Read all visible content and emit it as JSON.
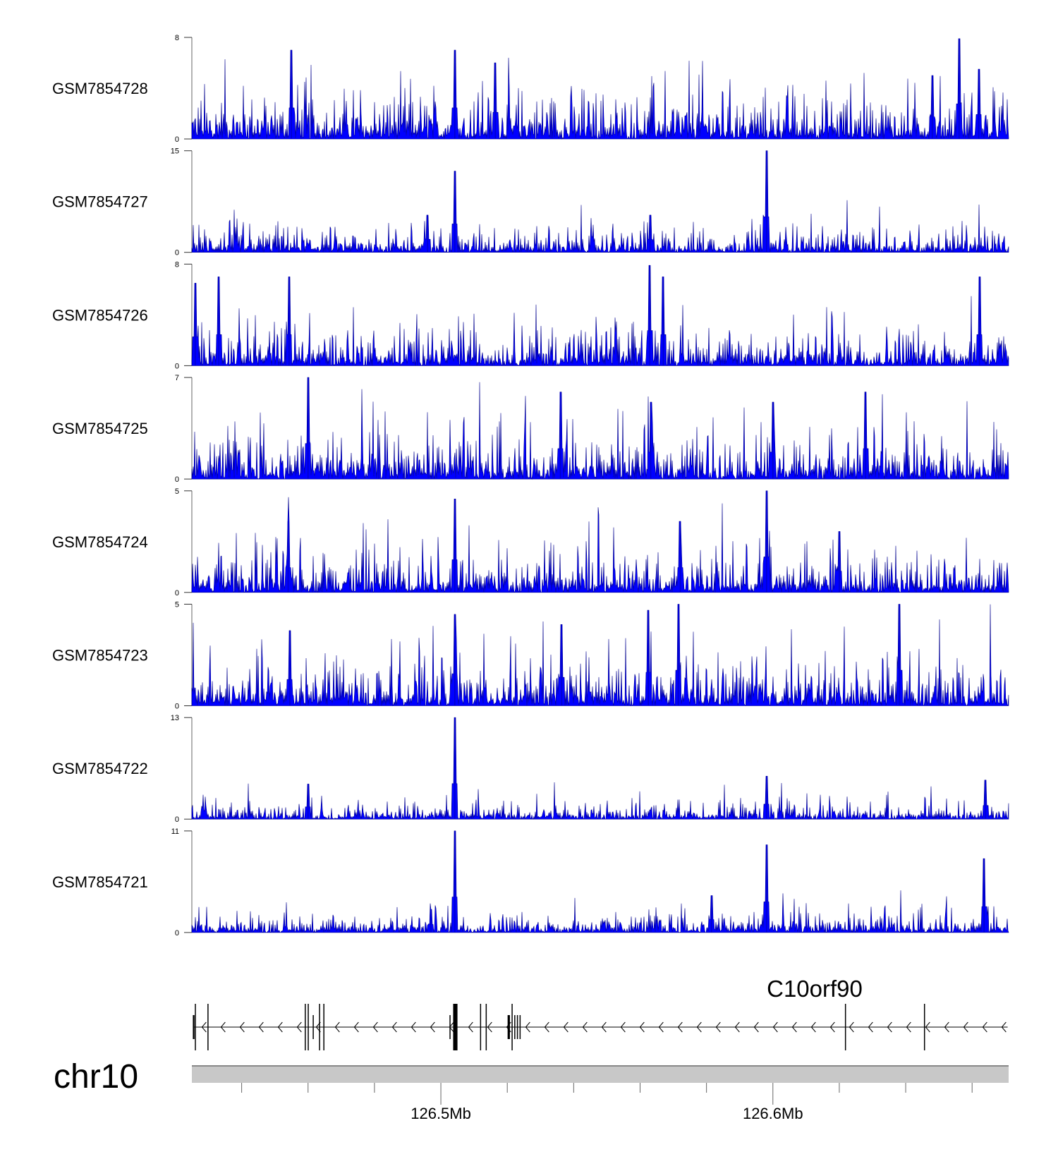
{
  "chart_data": {
    "type": "area",
    "title": "",
    "chromosome": "chr10",
    "xlim": [
      126.425,
      126.671
    ],
    "xunit": "Mb",
    "fill_color": "#0000ff",
    "line_color": "#00008b",
    "tracks": [
      {
        "name": "GSM7854728",
        "ymax": 8,
        "yticks": [
          "0",
          "8"
        ],
        "noise": 2.2,
        "peaks": [
          [
            126.455,
            7.0
          ],
          [
            126.5042,
            7.0
          ],
          [
            126.5164,
            6.0
          ],
          [
            126.6561,
            7.9
          ],
          [
            126.648,
            5.0
          ],
          [
            126.662,
            5.5
          ]
        ]
      },
      {
        "name": "GSM7854727",
        "ymax": 15,
        "yticks": [
          "0",
          "15"
        ],
        "noise": 2.2,
        "peaks": [
          [
            126.5042,
            12.0
          ],
          [
            126.5981,
            15.0
          ],
          [
            126.496,
            5.5
          ],
          [
            126.563,
            5.5
          ]
        ]
      },
      {
        "name": "GSM7854726",
        "ymax": 8,
        "yticks": [
          "0",
          "8"
        ],
        "noise": 1.9,
        "peaks": [
          [
            126.4331,
            7.0
          ],
          [
            126.4543,
            7.0
          ],
          [
            126.5629,
            7.9
          ],
          [
            126.567,
            7.0
          ],
          [
            126.6622,
            7.0
          ],
          [
            126.426,
            6.5
          ]
        ]
      },
      {
        "name": "GSM7854725",
        "ymax": 7,
        "yticks": [
          "0",
          "7"
        ],
        "noise": 1.9,
        "peaks": [
          [
            126.46,
            7.0
          ],
          [
            126.536,
            6.0
          ],
          [
            126.6279,
            6.0
          ],
          [
            126.5632,
            5.3
          ],
          [
            126.6,
            5.3
          ]
        ]
      },
      {
        "name": "GSM7854724",
        "ymax": 5,
        "yticks": [
          "0",
          "5"
        ],
        "noise": 1.3,
        "peaks": [
          [
            126.5042,
            4.6
          ],
          [
            126.5981,
            5.0
          ],
          [
            126.454,
            3.5
          ],
          [
            126.5721,
            3.5
          ],
          [
            126.62,
            3.0
          ]
        ]
      },
      {
        "name": "GSM7854723",
        "ymax": 5,
        "yticks": [
          "0",
          "5"
        ],
        "noise": 1.4,
        "peaks": [
          [
            126.5715,
            5.0
          ],
          [
            126.6381,
            5.0
          ],
          [
            126.5042,
            4.5
          ],
          [
            126.5625,
            4.7
          ],
          [
            126.5364,
            4.0
          ],
          [
            126.4545,
            3.7
          ]
        ]
      },
      {
        "name": "GSM7854722",
        "ymax": 13,
        "yticks": [
          "0",
          "13"
        ],
        "noise": 1.3,
        "peaks": [
          [
            126.5042,
            13.0
          ],
          [
            126.5981,
            5.5
          ],
          [
            126.664,
            5.0
          ],
          [
            126.46,
            4.5
          ]
        ]
      },
      {
        "name": "GSM7854721",
        "ymax": 11,
        "yticks": [
          "0",
          "11"
        ],
        "noise": 1.3,
        "peaks": [
          [
            126.5042,
            11.0
          ],
          [
            126.5981,
            9.5
          ],
          [
            126.6636,
            8.0
          ],
          [
            126.5815,
            4.0
          ],
          [
            126.497,
            2.5
          ]
        ]
      }
    ],
    "gene": {
      "name": "C10orf90",
      "strand": "-",
      "start": 126.4255,
      "end": 126.6707,
      "exons": [
        [
          126.4253,
          126.4258,
          "half"
        ],
        [
          126.4259,
          126.4261,
          "full"
        ],
        [
          126.4297,
          126.4299,
          "full"
        ],
        [
          126.459,
          126.4592,
          "full"
        ],
        [
          126.4599,
          126.4601,
          "full"
        ],
        [
          126.4614,
          126.4616,
          "half"
        ],
        [
          126.4633,
          126.4635,
          "full"
        ],
        [
          126.4646,
          126.4648,
          "full"
        ],
        [
          126.5026,
          126.5028,
          "half"
        ],
        [
          126.5037,
          126.505,
          "full"
        ],
        [
          126.5118,
          126.512,
          "full"
        ],
        [
          126.5135,
          126.5137,
          "full"
        ],
        [
          126.5201,
          126.5208,
          "half"
        ],
        [
          126.5213,
          126.5215,
          "full"
        ],
        [
          126.5221,
          126.5224,
          "half"
        ],
        [
          126.5229,
          126.5232,
          "half"
        ],
        [
          126.5237,
          126.524,
          "half"
        ],
        [
          126.6217,
          126.6219,
          "full"
        ],
        [
          126.6455,
          126.6457,
          "full"
        ]
      ]
    },
    "axis": {
      "major": [
        {
          "value": 126.5,
          "label": "126.5Mb"
        },
        {
          "value": 126.6,
          "label": "126.6Mb"
        }
      ],
      "minor": [
        126.44,
        126.46,
        126.48,
        126.52,
        126.54,
        126.56,
        126.58,
        126.62,
        126.64,
        126.66
      ]
    }
  }
}
